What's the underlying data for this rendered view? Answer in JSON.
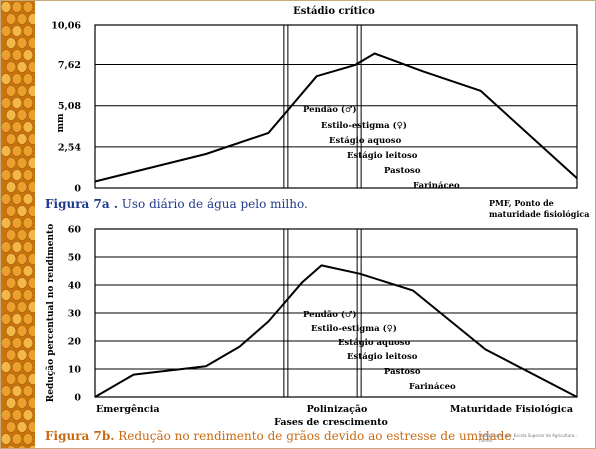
{
  "colors": {
    "caption_a": "#1f3a8a",
    "caption_b": "#c86a14",
    "frame": "#c9a979",
    "line": "#000000"
  },
  "decoration": {
    "left_strip": "corn-kernels-image"
  },
  "top_label": "Estádio crítico",
  "phase_labels": [
    "Pendão (♂)",
    "Estilo-estigma (♀)",
    "Estágio aquoso",
    "Estágio leitoso",
    "Pastoso",
    "Farináceo"
  ],
  "caption_a": {
    "prefix": "Figura 7a .",
    "text": " Uso diário de água pelo milho."
  },
  "caption_b": {
    "prefix": "Figura 7b.",
    "text": " Redução no rendimento de grãos devido ao estresse de umidade."
  },
  "pmf_note": [
    "PMF, Ponto de",
    "maturidade fisiológica"
  ],
  "credit": "Multiplicado por: Escola Superior de Agricultura... (fonte)",
  "chart_data": [
    {
      "type": "line",
      "title": "",
      "xlabel": "",
      "ylabel": "mm",
      "yticks": [
        0,
        2.54,
        5.08,
        7.62,
        10.06
      ],
      "ytick_labels": [
        "0",
        "2,54",
        "5,08",
        "7,62",
        "10,06"
      ],
      "ylim": [
        0,
        10.06
      ],
      "xlim": [
        0,
        100
      ],
      "x_dividers": [
        39.6,
        54.8
      ],
      "grid": true,
      "x": [
        0,
        23,
        36,
        46,
        54,
        58,
        68,
        80,
        100
      ],
      "y": [
        0.4,
        2.1,
        3.4,
        6.9,
        7.6,
        8.3,
        7.2,
        6.0,
        0.6
      ]
    },
    {
      "type": "line",
      "title": "",
      "xlabel": "Fases de crescimento",
      "ylabel": "Redução percentual no rendimento",
      "yticks": [
        0,
        10,
        20,
        30,
        40,
        50,
        60
      ],
      "ytick_labels": [
        "0",
        "10",
        "20",
        "30",
        "40",
        "50",
        "60"
      ],
      "ylim": [
        0,
        60
      ],
      "xlim": [
        0,
        100
      ],
      "x_dividers": [
        39.6,
        54.8
      ],
      "grid": true,
      "x_category_labels": [
        "Emergência",
        "Polinização",
        "Maturidade Fisiológica"
      ],
      "x": [
        0,
        8,
        23,
        30,
        36,
        39,
        43,
        47,
        55,
        66,
        81,
        100
      ],
      "y": [
        0,
        8,
        11,
        18,
        27,
        33,
        41,
        47,
        44,
        38,
        17,
        0
      ]
    }
  ]
}
